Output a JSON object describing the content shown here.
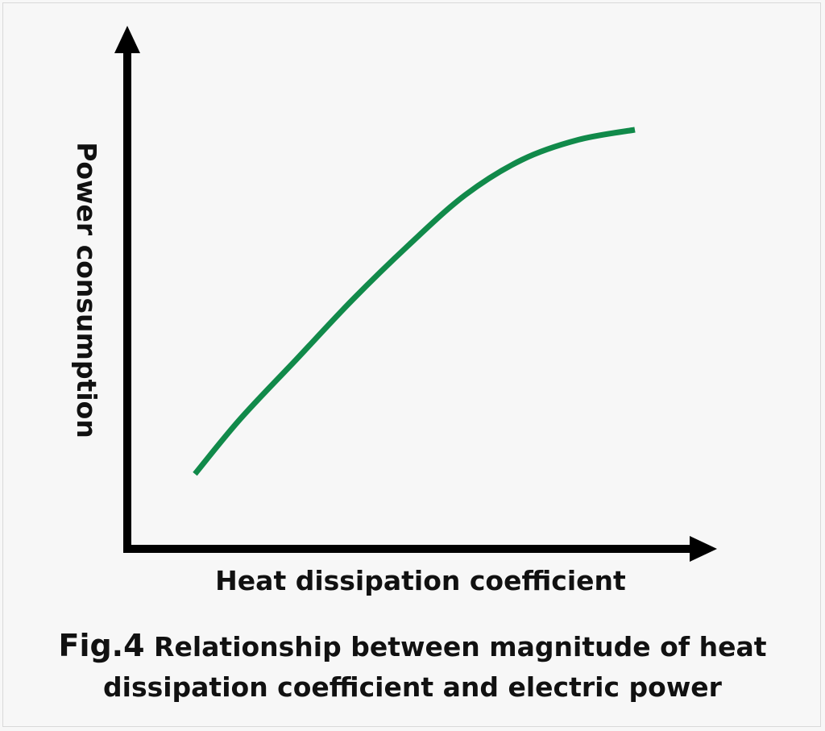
{
  "figure": {
    "number": "Fig.4",
    "caption_line1": "Relationship between magnitude of heat",
    "caption_line2": "dissipation coefficient and electric power"
  },
  "colors": {
    "curve": "#118a4a",
    "axis": "#000000",
    "background": "#f7f7f7"
  },
  "chart_data": {
    "type": "line",
    "title": "",
    "xlabel": "Heat dissipation coefficient",
    "ylabel": "Power consumption",
    "xlim": [
      0,
      1
    ],
    "ylim": [
      0,
      1
    ],
    "grid": false,
    "series": [
      {
        "x": [
          0.12,
          0.2,
          0.3,
          0.4,
          0.5,
          0.6,
          0.7,
          0.8,
          0.9
        ],
        "y": [
          0.15,
          0.26,
          0.38,
          0.5,
          0.61,
          0.71,
          0.78,
          0.82,
          0.84
        ]
      }
    ]
  }
}
